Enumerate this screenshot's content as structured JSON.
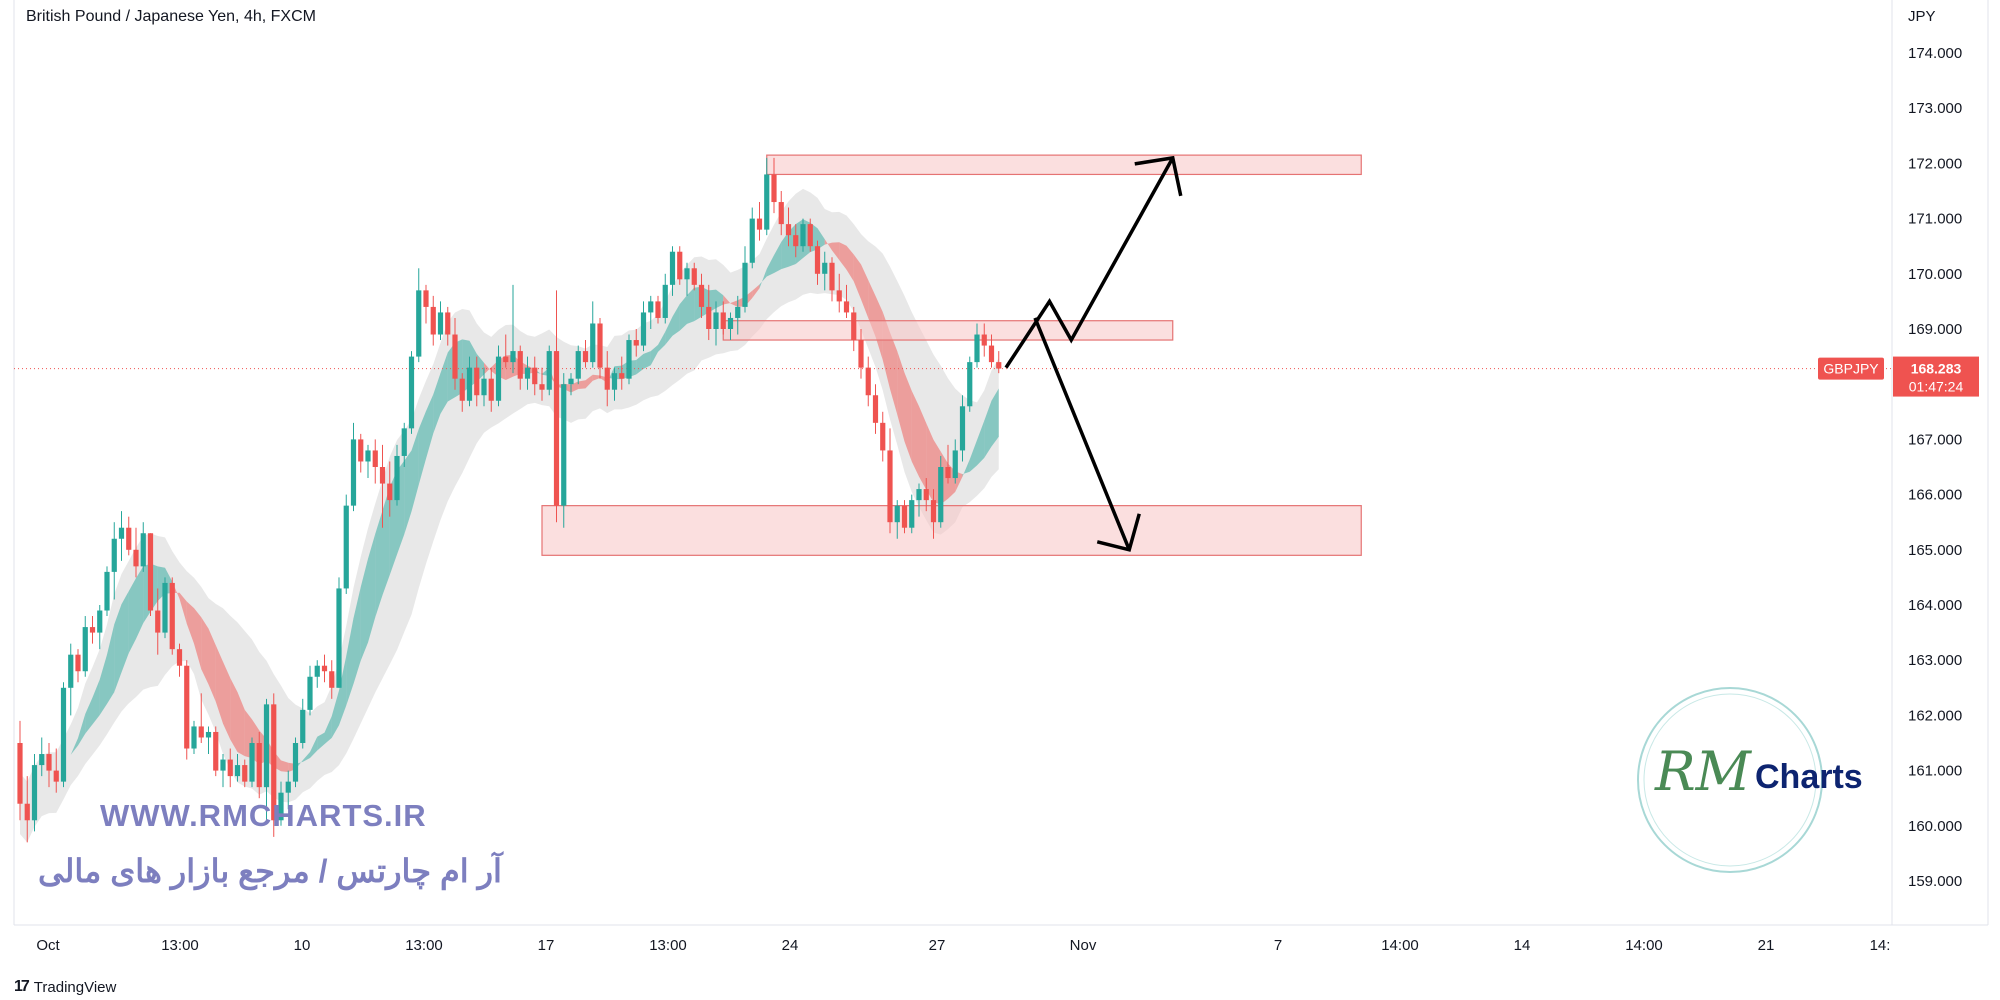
{
  "header": {
    "title": "British Pound / Japanese Yen, 4h, FXCM"
  },
  "footer": {
    "brand": "TradingView"
  },
  "watermark": {
    "url": "WWW.RMCHARTS.IR",
    "tagline": "آر ام چارتس / مرجع بازار های مالی"
  },
  "logo": {
    "script": "RM",
    "text": "Charts"
  },
  "colors": {
    "up": "#26a69a",
    "down": "#ef5350",
    "zone": "#f7c4c4",
    "zone_border": "#e57373",
    "band_gray": "#d9d9d9"
  },
  "chart_data": {
    "type": "candlestick",
    "symbol": "GBPJPY",
    "currency": "JPY",
    "last_price": "168.283",
    "countdown": "01:47:24",
    "ylim": [
      158.6,
      174.5
    ],
    "yticks": [
      "174.000",
      "173.000",
      "172.000",
      "171.000",
      "170.000",
      "169.000",
      "167.000",
      "166.000",
      "165.000",
      "164.000",
      "163.000",
      "162.000",
      "161.000",
      "160.000",
      "159.000"
    ],
    "xlabels": [
      "Oct",
      "13:00",
      "10",
      "13:00",
      "17",
      "13:00",
      "24",
      "27",
      "Nov",
      "7",
      "14:00",
      "14",
      "14:00",
      "21",
      "14:"
    ],
    "zones": [
      {
        "from_bar": 103,
        "to_bar": 185,
        "low": 171.8,
        "high": 172.15
      },
      {
        "from_bar": 97,
        "to_bar": 159,
        "low": 168.8,
        "high": 169.15
      },
      {
        "from_bar": 72,
        "to_bar": 185,
        "low": 164.9,
        "high": 165.8
      }
    ],
    "projection_up": [
      [
        136,
        168.3
      ],
      [
        142,
        169.5
      ],
      [
        145,
        168.8
      ],
      [
        159,
        172.1
      ]
    ],
    "projection_down": [
      [
        140,
        169.2
      ],
      [
        153,
        165.0
      ]
    ],
    "candles": [
      [
        161.5,
        161.9,
        160.1,
        160.4
      ],
      [
        160.4,
        160.9,
        159.7,
        160.1
      ],
      [
        160.1,
        161.3,
        159.9,
        161.1
      ],
      [
        161.1,
        161.6,
        160.9,
        161.3
      ],
      [
        161.3,
        161.5,
        160.7,
        161.0
      ],
      [
        161.0,
        161.4,
        160.6,
        160.8
      ],
      [
        160.8,
        162.6,
        160.7,
        162.5
      ],
      [
        162.5,
        163.3,
        162.0,
        163.1
      ],
      [
        163.1,
        163.2,
        162.6,
        162.8
      ],
      [
        162.8,
        163.8,
        162.7,
        163.6
      ],
      [
        163.6,
        163.8,
        163.3,
        163.5
      ],
      [
        163.5,
        164.0,
        163.2,
        163.9
      ],
      [
        163.9,
        164.7,
        163.8,
        164.6
      ],
      [
        164.6,
        165.5,
        164.1,
        165.2
      ],
      [
        165.2,
        165.7,
        164.8,
        165.4
      ],
      [
        165.4,
        165.6,
        164.9,
        165.0
      ],
      [
        165.0,
        165.4,
        164.5,
        164.7
      ],
      [
        164.7,
        165.5,
        164.6,
        165.3
      ],
      [
        165.3,
        165.3,
        163.8,
        163.9
      ],
      [
        163.9,
        164.3,
        163.1,
        163.5
      ],
      [
        163.5,
        164.5,
        163.4,
        164.4
      ],
      [
        164.4,
        164.5,
        163.1,
        163.2
      ],
      [
        163.2,
        163.3,
        162.7,
        162.9
      ],
      [
        162.9,
        163.0,
        161.2,
        161.4
      ],
      [
        161.4,
        161.9,
        161.3,
        161.8
      ],
      [
        161.8,
        162.4,
        161.5,
        161.6
      ],
      [
        161.6,
        161.8,
        161.3,
        161.7
      ],
      [
        161.7,
        161.8,
        160.9,
        161.0
      ],
      [
        161.0,
        161.3,
        160.7,
        161.2
      ],
      [
        161.2,
        161.4,
        160.7,
        160.9
      ],
      [
        160.9,
        161.3,
        160.8,
        161.1
      ],
      [
        161.1,
        161.2,
        160.7,
        160.8
      ],
      [
        160.8,
        161.6,
        160.7,
        161.5
      ],
      [
        161.5,
        161.7,
        160.5,
        160.7
      ],
      [
        160.7,
        162.3,
        160.1,
        162.2
      ],
      [
        162.2,
        162.4,
        159.8,
        160.1
      ],
      [
        160.1,
        160.8,
        160.0,
        160.6
      ],
      [
        160.6,
        161.0,
        160.3,
        160.8
      ],
      [
        160.8,
        161.6,
        160.7,
        161.5
      ],
      [
        161.5,
        162.3,
        161.4,
        162.1
      ],
      [
        162.1,
        162.9,
        162.0,
        162.7
      ],
      [
        162.7,
        163.0,
        162.5,
        162.9
      ],
      [
        162.9,
        163.1,
        162.6,
        162.8
      ],
      [
        162.8,
        163.0,
        162.3,
        162.5
      ],
      [
        162.5,
        164.5,
        162.5,
        164.3
      ],
      [
        164.3,
        166.0,
        164.2,
        165.8
      ],
      [
        165.8,
        167.3,
        165.7,
        167.0
      ],
      [
        167.0,
        167.1,
        166.4,
        166.6
      ],
      [
        166.6,
        166.9,
        166.3,
        166.8
      ],
      [
        166.8,
        167.0,
        166.2,
        166.5
      ],
      [
        166.5,
        166.9,
        165.4,
        166.2
      ],
      [
        166.2,
        166.6,
        165.6,
        165.9
      ],
      [
        165.9,
        166.9,
        165.8,
        166.7
      ],
      [
        166.7,
        167.3,
        166.5,
        167.2
      ],
      [
        167.2,
        168.6,
        167.1,
        168.5
      ],
      [
        168.5,
        170.1,
        168.4,
        169.7
      ],
      [
        169.7,
        169.8,
        169.1,
        169.4
      ],
      [
        169.4,
        169.6,
        168.7,
        168.9
      ],
      [
        168.9,
        169.5,
        168.8,
        169.3
      ],
      [
        169.3,
        169.4,
        168.7,
        168.9
      ],
      [
        168.9,
        169.2,
        167.9,
        168.1
      ],
      [
        168.1,
        168.2,
        167.5,
        167.7
      ],
      [
        167.7,
        168.5,
        167.6,
        168.3
      ],
      [
        168.3,
        168.5,
        167.6,
        167.8
      ],
      [
        167.8,
        168.3,
        167.6,
        168.1
      ],
      [
        168.1,
        168.3,
        167.5,
        167.7
      ],
      [
        167.7,
        168.7,
        167.6,
        168.5
      ],
      [
        168.5,
        168.9,
        168.3,
        168.4
      ],
      [
        168.4,
        169.8,
        168.2,
        168.6
      ],
      [
        168.6,
        168.7,
        167.9,
        168.1
      ],
      [
        168.1,
        168.5,
        167.9,
        168.3
      ],
      [
        168.3,
        168.5,
        167.8,
        168.0
      ],
      [
        168.0,
        168.3,
        167.7,
        167.9
      ],
      [
        167.9,
        168.7,
        167.8,
        168.6
      ],
      [
        168.6,
        169.7,
        165.5,
        165.8
      ],
      [
        165.8,
        168.2,
        165.4,
        168.0
      ],
      [
        168.0,
        168.2,
        167.8,
        168.1
      ],
      [
        168.1,
        168.7,
        168.0,
        168.6
      ],
      [
        168.6,
        168.8,
        168.3,
        168.4
      ],
      [
        168.4,
        169.5,
        168.3,
        169.1
      ],
      [
        169.1,
        169.2,
        168.1,
        168.3
      ],
      [
        168.3,
        168.6,
        167.6,
        167.9
      ],
      [
        167.9,
        168.3,
        167.7,
        168.2
      ],
      [
        168.2,
        168.5,
        167.9,
        168.1
      ],
      [
        168.1,
        168.9,
        168.0,
        168.8
      ],
      [
        168.8,
        169.0,
        168.5,
        168.7
      ],
      [
        168.7,
        169.5,
        168.6,
        169.3
      ],
      [
        169.3,
        169.6,
        169.0,
        169.5
      ],
      [
        169.5,
        169.6,
        169.1,
        169.2
      ],
      [
        169.2,
        170.0,
        169.1,
        169.8
      ],
      [
        169.8,
        170.5,
        169.6,
        170.4
      ],
      [
        170.4,
        170.5,
        169.8,
        169.9
      ],
      [
        169.9,
        170.2,
        169.6,
        170.1
      ],
      [
        170.1,
        170.2,
        169.7,
        169.8
      ],
      [
        169.8,
        170.0,
        169.2,
        169.4
      ],
      [
        169.4,
        169.8,
        168.8,
        169.0
      ],
      [
        169.0,
        169.5,
        168.7,
        169.3
      ],
      [
        169.3,
        169.5,
        168.9,
        169.0
      ],
      [
        169.0,
        169.3,
        168.8,
        169.2
      ],
      [
        169.2,
        169.6,
        168.9,
        169.4
      ],
      [
        169.4,
        170.5,
        169.3,
        170.2
      ],
      [
        170.2,
        171.2,
        170.1,
        171.0
      ],
      [
        171.0,
        171.3,
        170.6,
        170.8
      ],
      [
        170.8,
        172.1,
        170.7,
        171.8
      ],
      [
        171.8,
        172.1,
        171.1,
        171.3
      ],
      [
        171.3,
        171.5,
        170.7,
        170.9
      ],
      [
        170.9,
        171.2,
        170.5,
        170.7
      ],
      [
        170.7,
        170.9,
        170.3,
        170.5
      ],
      [
        170.5,
        171.0,
        170.4,
        170.9
      ],
      [
        170.9,
        171.0,
        170.4,
        170.5
      ],
      [
        170.5,
        170.6,
        169.8,
        170.0
      ],
      [
        170.0,
        170.4,
        169.7,
        170.2
      ],
      [
        170.2,
        170.3,
        169.5,
        169.7
      ],
      [
        169.7,
        170.0,
        169.3,
        169.5
      ],
      [
        169.5,
        169.8,
        169.2,
        169.3
      ],
      [
        169.3,
        169.4,
        168.6,
        168.8
      ],
      [
        168.8,
        169.0,
        168.1,
        168.3
      ],
      [
        168.3,
        168.5,
        167.6,
        167.8
      ],
      [
        167.8,
        168.0,
        167.1,
        167.3
      ],
      [
        167.3,
        167.5,
        166.6,
        166.8
      ],
      [
        166.8,
        167.2,
        165.3,
        165.5
      ],
      [
        165.5,
        165.9,
        165.2,
        165.8
      ],
      [
        165.8,
        165.9,
        165.3,
        165.4
      ],
      [
        165.4,
        166.0,
        165.3,
        165.9
      ],
      [
        165.9,
        166.2,
        165.6,
        166.1
      ],
      [
        166.1,
        166.3,
        165.7,
        165.9
      ],
      [
        165.9,
        166.1,
        165.2,
        165.5
      ],
      [
        165.5,
        166.7,
        165.4,
        166.5
      ],
      [
        166.5,
        166.9,
        166.2,
        166.3
      ],
      [
        166.3,
        167.0,
        166.2,
        166.8
      ],
      [
        166.8,
        167.8,
        166.6,
        167.6
      ],
      [
        167.6,
        168.5,
        167.5,
        168.4
      ],
      [
        168.4,
        169.1,
        168.3,
        168.9
      ],
      [
        168.9,
        169.1,
        168.5,
        168.7
      ],
      [
        168.7,
        168.9,
        168.3,
        168.4
      ],
      [
        168.4,
        168.6,
        168.2,
        168.283
      ]
    ]
  }
}
